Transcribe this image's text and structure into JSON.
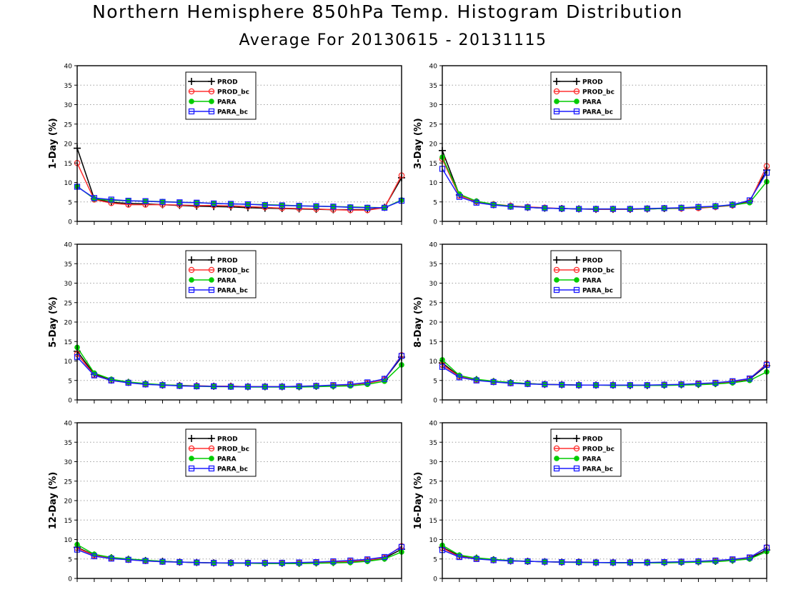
{
  "title": "Northern Hemisphere 850hPa Temp. Histogram Distribution",
  "subtitle": "Average For 20130615 - 20131115",
  "colors": {
    "PROD": "#000000",
    "PROD_bc": "#ff3030",
    "PARA": "#00cc00",
    "PARA_bc": "#1c1cff"
  },
  "chart_data": [
    {
      "type": "line",
      "ylabel": "1-Day (%)",
      "ylim": [
        0,
        40
      ],
      "yticks": [
        0,
        5,
        10,
        15,
        20,
        25,
        30,
        35,
        40
      ],
      "x": [
        1,
        2,
        3,
        4,
        5,
        6,
        7,
        8,
        9,
        10,
        11,
        12,
        13,
        14,
        15,
        16,
        17,
        18,
        19,
        20
      ],
      "grid": true,
      "legend_position": "top-center",
      "series": [
        {
          "name": "PROD",
          "marker": "plus",
          "values": [
            18.8,
            5.8,
            4.9,
            4.6,
            4.5,
            4.3,
            4.1,
            3.9,
            3.8,
            3.7,
            3.5,
            3.4,
            3.3,
            3.2,
            3.1,
            3.0,
            3.0,
            3.0,
            3.6,
            11.2
          ]
        },
        {
          "name": "PROD_bc",
          "marker": "open-circle",
          "values": [
            15.0,
            5.6,
            4.7,
            4.3,
            4.3,
            4.3,
            4.2,
            4.1,
            4.1,
            4.0,
            3.8,
            3.6,
            3.4,
            3.3,
            3.2,
            3.0,
            2.9,
            2.9,
            3.5,
            11.8
          ]
        },
        {
          "name": "PARA",
          "marker": "filled-circle",
          "values": [
            9.0,
            5.8,
            5.4,
            5.3,
            5.2,
            5.1,
            4.9,
            4.8,
            4.6,
            4.5,
            4.4,
            4.3,
            4.2,
            4.0,
            3.9,
            3.8,
            3.7,
            3.6,
            3.5,
            5.5
          ]
        },
        {
          "name": "PARA_bc",
          "marker": "open-square",
          "values": [
            8.9,
            6.0,
            5.6,
            5.3,
            5.2,
            5.0,
            4.9,
            4.8,
            4.6,
            4.5,
            4.4,
            4.2,
            4.1,
            4.0,
            3.9,
            3.8,
            3.6,
            3.5,
            3.5,
            5.3
          ]
        }
      ]
    },
    {
      "type": "line",
      "ylabel": "3-Day (%)",
      "ylim": [
        0,
        40
      ],
      "yticks": [
        0,
        5,
        10,
        15,
        20,
        25,
        30,
        35,
        40
      ],
      "x": [
        1,
        2,
        3,
        4,
        5,
        6,
        7,
        8,
        9,
        10,
        11,
        12,
        13,
        14,
        15,
        16,
        17,
        18,
        19,
        20
      ],
      "grid": true,
      "legend_position": "top-center",
      "series": [
        {
          "name": "PROD",
          "marker": "plus",
          "values": [
            18.2,
            6.8,
            5.0,
            4.3,
            3.9,
            3.6,
            3.4,
            3.3,
            3.2,
            3.1,
            3.1,
            3.1,
            3.2,
            3.3,
            3.4,
            3.6,
            3.8,
            4.2,
            5.2,
            13.2
          ]
        },
        {
          "name": "PROD_bc",
          "marker": "open-circle",
          "values": [
            16.0,
            6.6,
            5.1,
            4.4,
            4.0,
            3.7,
            3.5,
            3.3,
            3.2,
            3.1,
            3.1,
            3.1,
            3.2,
            3.3,
            3.3,
            3.4,
            3.7,
            4.1,
            5.0,
            14.2
          ]
        },
        {
          "name": "PARA",
          "marker": "filled-circle",
          "values": [
            16.5,
            7.0,
            5.2,
            4.4,
            3.9,
            3.6,
            3.4,
            3.3,
            3.2,
            3.2,
            3.2,
            3.2,
            3.2,
            3.3,
            3.4,
            3.6,
            3.8,
            4.2,
            4.8,
            10.2
          ]
        },
        {
          "name": "PARA_bc",
          "marker": "open-square",
          "values": [
            13.5,
            6.3,
            4.8,
            4.2,
            3.8,
            3.6,
            3.4,
            3.3,
            3.2,
            3.2,
            3.2,
            3.2,
            3.3,
            3.4,
            3.5,
            3.7,
            3.9,
            4.3,
            5.4,
            12.5
          ]
        }
      ]
    },
    {
      "type": "line",
      "ylabel": "5-Day (%)",
      "ylim": [
        0,
        40
      ],
      "yticks": [
        0,
        5,
        10,
        15,
        20,
        25,
        30,
        35,
        40
      ],
      "x": [
        1,
        2,
        3,
        4,
        5,
        6,
        7,
        8,
        9,
        10,
        11,
        12,
        13,
        14,
        15,
        16,
        17,
        18,
        19,
        20
      ],
      "grid": true,
      "legend_position": "top-center",
      "series": [
        {
          "name": "PROD",
          "marker": "plus",
          "values": [
            12.5,
            6.6,
            5.1,
            4.5,
            4.1,
            3.8,
            3.7,
            3.6,
            3.5,
            3.5,
            3.4,
            3.4,
            3.4,
            3.4,
            3.5,
            3.6,
            3.9,
            4.3,
            5.3,
            11.0
          ]
        },
        {
          "name": "PROD_bc",
          "marker": "open-circle",
          "values": [
            11.8,
            6.4,
            5.0,
            4.4,
            4.1,
            3.8,
            3.7,
            3.6,
            3.5,
            3.5,
            3.4,
            3.4,
            3.4,
            3.5,
            3.6,
            3.7,
            3.9,
            4.3,
            5.2,
            11.5
          ]
        },
        {
          "name": "PARA",
          "marker": "filled-circle",
          "values": [
            13.5,
            6.9,
            5.3,
            4.6,
            4.2,
            3.9,
            3.7,
            3.5,
            3.4,
            3.4,
            3.3,
            3.3,
            3.3,
            3.3,
            3.4,
            3.5,
            3.6,
            4.0,
            4.8,
            9.0
          ]
        },
        {
          "name": "PARA_bc",
          "marker": "open-square",
          "values": [
            11.0,
            6.3,
            5.0,
            4.4,
            4.0,
            3.8,
            3.6,
            3.5,
            3.5,
            3.4,
            3.4,
            3.4,
            3.4,
            3.5,
            3.6,
            3.8,
            4.0,
            4.5,
            5.4,
            11.3
          ]
        }
      ]
    },
    {
      "type": "line",
      "ylabel": "8-Day (%)",
      "ylim": [
        0,
        40
      ],
      "yticks": [
        0,
        5,
        10,
        15,
        20,
        25,
        30,
        35,
        40
      ],
      "x": [
        1,
        2,
        3,
        4,
        5,
        6,
        7,
        8,
        9,
        10,
        11,
        12,
        13,
        14,
        15,
        16,
        17,
        18,
        19,
        20
      ],
      "grid": true,
      "legend_position": "top-center",
      "series": [
        {
          "name": "PROD",
          "marker": "plus",
          "values": [
            9.5,
            6.1,
            5.2,
            4.7,
            4.4,
            4.2,
            4.0,
            3.9,
            3.8,
            3.8,
            3.8,
            3.7,
            3.7,
            3.8,
            3.9,
            4.0,
            4.2,
            4.6,
            5.3,
            8.8
          ]
        },
        {
          "name": "PROD_bc",
          "marker": "open-circle",
          "values": [
            9.0,
            6.0,
            5.1,
            4.7,
            4.4,
            4.2,
            4.0,
            3.9,
            3.8,
            3.8,
            3.8,
            3.8,
            3.8,
            3.8,
            3.9,
            4.1,
            4.3,
            4.7,
            5.4,
            9.3
          ]
        },
        {
          "name": "PARA",
          "marker": "filled-circle",
          "values": [
            10.3,
            6.3,
            5.3,
            4.8,
            4.5,
            4.2,
            4.0,
            3.9,
            3.8,
            3.8,
            3.7,
            3.7,
            3.7,
            3.7,
            3.8,
            3.9,
            4.1,
            4.4,
            5.0,
            7.2
          ]
        },
        {
          "name": "PARA_bc",
          "marker": "open-square",
          "values": [
            8.5,
            5.8,
            5.0,
            4.6,
            4.3,
            4.1,
            4.0,
            3.9,
            3.8,
            3.8,
            3.8,
            3.8,
            3.8,
            3.9,
            4.0,
            4.2,
            4.4,
            4.8,
            5.5,
            9.0
          ]
        }
      ]
    },
    {
      "type": "line",
      "ylabel": "12-Day (%)",
      "ylim": [
        0,
        40
      ],
      "yticks": [
        0,
        5,
        10,
        15,
        20,
        25,
        30,
        35,
        40
      ],
      "x": [
        1,
        2,
        3,
        4,
        5,
        6,
        7,
        8,
        9,
        10,
        11,
        12,
        13,
        14,
        15,
        16,
        17,
        18,
        19,
        20
      ],
      "grid": true,
      "legend_position": "top-center",
      "series": [
        {
          "name": "PROD",
          "marker": "plus",
          "values": [
            8.0,
            6.0,
            5.3,
            4.9,
            4.6,
            4.4,
            4.2,
            4.1,
            4.0,
            4.0,
            3.9,
            3.9,
            3.9,
            3.9,
            4.0,
            4.1,
            4.3,
            4.6,
            5.2,
            7.5
          ]
        },
        {
          "name": "PROD_bc",
          "marker": "open-circle",
          "values": [
            7.8,
            5.9,
            5.2,
            4.8,
            4.5,
            4.3,
            4.2,
            4.1,
            4.0,
            4.0,
            4.0,
            3.9,
            3.9,
            4.0,
            4.1,
            4.2,
            4.4,
            4.7,
            5.3,
            8.3
          ]
        },
        {
          "name": "PARA",
          "marker": "filled-circle",
          "values": [
            8.7,
            6.2,
            5.4,
            5.0,
            4.7,
            4.4,
            4.2,
            4.1,
            4.0,
            3.9,
            3.9,
            3.8,
            3.8,
            3.8,
            3.9,
            4.0,
            4.1,
            4.4,
            5.0,
            6.8
          ]
        },
        {
          "name": "PARA_bc",
          "marker": "open-square",
          "values": [
            7.4,
            5.7,
            5.1,
            4.8,
            4.5,
            4.3,
            4.2,
            4.1,
            4.0,
            4.0,
            4.0,
            4.0,
            4.0,
            4.1,
            4.2,
            4.4,
            4.6,
            4.9,
            5.5,
            8.1
          ]
        }
      ]
    },
    {
      "type": "line",
      "ylabel": "16-Day (%)",
      "ylim": [
        0,
        40
      ],
      "yticks": [
        0,
        5,
        10,
        15,
        20,
        25,
        30,
        35,
        40
      ],
      "x": [
        1,
        2,
        3,
        4,
        5,
        6,
        7,
        8,
        9,
        10,
        11,
        12,
        13,
        14,
        15,
        16,
        17,
        18,
        19,
        20
      ],
      "grid": true,
      "legend_position": "top-center",
      "series": [
        {
          "name": "PROD",
          "marker": "plus",
          "values": [
            8.0,
            5.8,
            5.2,
            4.8,
            4.5,
            4.4,
            4.3,
            4.2,
            4.2,
            4.1,
            4.1,
            4.1,
            4.1,
            4.1,
            4.2,
            4.3,
            4.4,
            4.7,
            5.2,
            7.3
          ]
        },
        {
          "name": "PROD_bc",
          "marker": "open-circle",
          "values": [
            7.8,
            5.6,
            5.1,
            4.8,
            4.5,
            4.4,
            4.3,
            4.2,
            4.2,
            4.1,
            4.1,
            4.1,
            4.1,
            4.1,
            4.2,
            4.3,
            4.5,
            4.8,
            5.3,
            8.0
          ]
        },
        {
          "name": "PARA",
          "marker": "filled-circle",
          "values": [
            8.5,
            6.0,
            5.3,
            4.9,
            4.6,
            4.4,
            4.3,
            4.2,
            4.1,
            4.1,
            4.0,
            4.0,
            4.0,
            4.0,
            4.1,
            4.2,
            4.3,
            4.6,
            5.0,
            6.9
          ]
        },
        {
          "name": "PARA_bc",
          "marker": "open-square",
          "values": [
            7.3,
            5.5,
            5.0,
            4.7,
            4.5,
            4.4,
            4.3,
            4.2,
            4.2,
            4.1,
            4.1,
            4.1,
            4.1,
            4.2,
            4.3,
            4.4,
            4.6,
            4.9,
            5.4,
            7.9
          ]
        }
      ]
    }
  ]
}
